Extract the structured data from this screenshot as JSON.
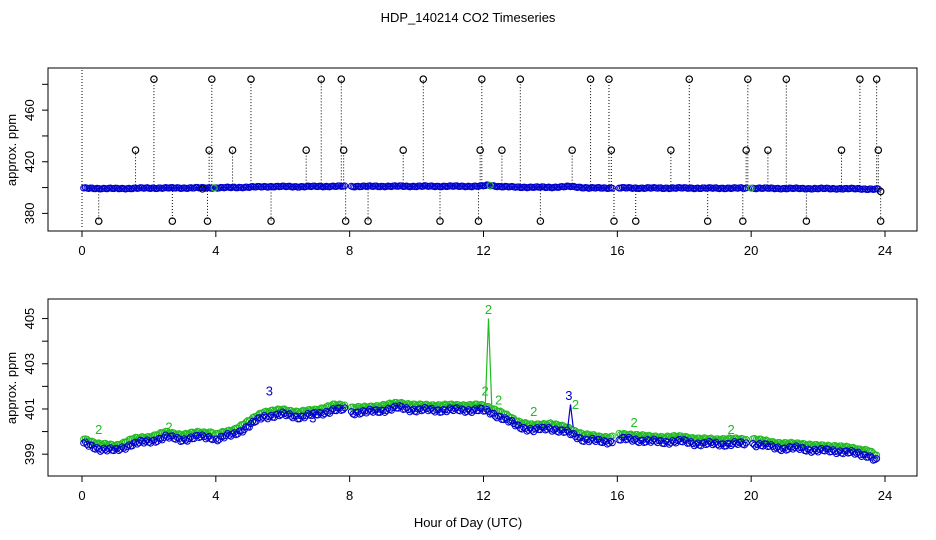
{
  "title": "HDP_140214  CO2 Timeseries",
  "xlabel": "Hour of Day (UTC)",
  "colors": {
    "outlier": "#000000",
    "series_blue": "#0000cc",
    "series_green": "#22bb22",
    "text": "#000000"
  },
  "chart_data": [
    {
      "type": "scatter",
      "ylabel": "approx. ppm",
      "xlim": [
        0,
        24
      ],
      "ylim": [
        371,
        488
      ],
      "xticks": [
        0,
        4,
        8,
        12,
        16,
        20,
        24
      ],
      "yticks": [
        380,
        420,
        460
      ],
      "ytick_labels": [
        "380",
        "420",
        "460"
      ],
      "grid": false,
      "baseline": [
        [
          0.05,
          399.5
        ],
        [
          1,
          399.2
        ],
        [
          2,
          399.6
        ],
        [
          3,
          399.7
        ],
        [
          4,
          399.8
        ],
        [
          5,
          400.3
        ],
        [
          5.6,
          400.8
        ],
        [
          6.5,
          400.7
        ],
        [
          7.5,
          401.0
        ],
        [
          8,
          400.9
        ],
        [
          9,
          401.0
        ],
        [
          10,
          401.0
        ],
        [
          11,
          401.0
        ],
        [
          11.9,
          401.0
        ],
        [
          12.15,
          401.8
        ],
        [
          12.5,
          400.8
        ],
        [
          13,
          400.3
        ],
        [
          14,
          400.2
        ],
        [
          14.6,
          400.8
        ],
        [
          15.2,
          399.6
        ],
        [
          16,
          399.7
        ],
        [
          17,
          399.6
        ],
        [
          18,
          399.6
        ],
        [
          19,
          399.5
        ],
        [
          20,
          399.5
        ],
        [
          21,
          399.3
        ],
        [
          22,
          399.2
        ],
        [
          23,
          399.1
        ],
        [
          23.8,
          398.7
        ]
      ],
      "spikes": [
        {
          "x": 0.5,
          "y": 374
        },
        {
          "x": 1.6,
          "y": 429
        },
        {
          "x": 2.15,
          "y": 484
        },
        {
          "x": 2.7,
          "y": 374
        },
        {
          "x": 3.6,
          "y": 399
        },
        {
          "x": 3.75,
          "y": 374
        },
        {
          "x": 3.8,
          "y": 429
        },
        {
          "x": 3.88,
          "y": 484
        },
        {
          "x": 4.5,
          "y": 429
        },
        {
          "x": 5.05,
          "y": 484
        },
        {
          "x": 5.65,
          "y": 374
        },
        {
          "x": 6.7,
          "y": 429
        },
        {
          "x": 7.15,
          "y": 484
        },
        {
          "x": 7.75,
          "y": 484
        },
        {
          "x": 7.82,
          "y": 429
        },
        {
          "x": 7.88,
          "y": 374
        },
        {
          "x": 8.55,
          "y": 374
        },
        {
          "x": 9.6,
          "y": 429
        },
        {
          "x": 10.2,
          "y": 484
        },
        {
          "x": 10.7,
          "y": 374
        },
        {
          "x": 11.85,
          "y": 374
        },
        {
          "x": 11.9,
          "y": 429
        },
        {
          "x": 11.95,
          "y": 484
        },
        {
          "x": 12.55,
          "y": 429
        },
        {
          "x": 13.1,
          "y": 484
        },
        {
          "x": 13.7,
          "y": 374
        },
        {
          "x": 14.65,
          "y": 429
        },
        {
          "x": 15.2,
          "y": 484
        },
        {
          "x": 15.75,
          "y": 484
        },
        {
          "x": 15.82,
          "y": 429
        },
        {
          "x": 15.9,
          "y": 374
        },
        {
          "x": 16.55,
          "y": 374
        },
        {
          "x": 17.6,
          "y": 429
        },
        {
          "x": 18.15,
          "y": 484
        },
        {
          "x": 18.7,
          "y": 374
        },
        {
          "x": 19.75,
          "y": 374
        },
        {
          "x": 19.85,
          "y": 429
        },
        {
          "x": 19.9,
          "y": 484
        },
        {
          "x": 20.5,
          "y": 429
        },
        {
          "x": 21.05,
          "y": 484
        },
        {
          "x": 21.65,
          "y": 374
        },
        {
          "x": 22.7,
          "y": 429
        },
        {
          "x": 23.25,
          "y": 484
        },
        {
          "x": 23.75,
          "y": 484
        },
        {
          "x": 23.8,
          "y": 429
        },
        {
          "x": 23.87,
          "y": 374
        }
      ]
    },
    {
      "type": "scatter",
      "ylabel": "approx. ppm",
      "xlim": [
        0,
        24
      ],
      "ylim": [
        398.3,
        405.6
      ],
      "xticks": [
        0,
        4,
        8,
        12,
        16,
        20,
        24
      ],
      "yticks": [
        399,
        401,
        403,
        405
      ],
      "ytick_labels": [
        "399",
        "401",
        "403",
        "405"
      ],
      "grid": false,
      "baseline": [
        [
          0.05,
          399.5
        ],
        [
          0.5,
          399.3
        ],
        [
          1,
          399.2
        ],
        [
          1.5,
          399.5
        ],
        [
          2,
          399.6
        ],
        [
          2.5,
          399.8
        ],
        [
          3,
          399.7
        ],
        [
          3.5,
          399.8
        ],
        [
          3.9,
          399.8
        ],
        [
          4.0,
          399.7
        ],
        [
          4.5,
          399.9
        ],
        [
          5,
          400.3
        ],
        [
          5.4,
          400.7
        ],
        [
          6,
          400.8
        ],
        [
          6.5,
          400.7
        ],
        [
          7,
          400.8
        ],
        [
          7.5,
          401.0
        ],
        [
          7.85,
          401.0
        ],
        [
          8.05,
          400.9
        ],
        [
          8.5,
          400.9
        ],
        [
          9,
          401.0
        ],
        [
          9.5,
          401.1
        ],
        [
          10,
          401.0
        ],
        [
          10.5,
          401.0
        ],
        [
          11,
          401.0
        ],
        [
          11.5,
          401.0
        ],
        [
          11.9,
          401.0
        ],
        [
          12.2,
          400.9
        ],
        [
          12.5,
          400.7
        ],
        [
          13,
          400.3
        ],
        [
          13.5,
          400.1
        ],
        [
          14,
          400.2
        ],
        [
          14.5,
          400.0
        ],
        [
          15,
          399.7
        ],
        [
          15.5,
          399.6
        ],
        [
          15.85,
          399.6
        ],
        [
          16.05,
          399.7
        ],
        [
          16.5,
          399.7
        ],
        [
          17,
          399.6
        ],
        [
          17.5,
          399.6
        ],
        [
          18,
          399.6
        ],
        [
          18.5,
          399.5
        ],
        [
          19,
          399.5
        ],
        [
          19.5,
          399.5
        ],
        [
          19.85,
          399.5
        ],
        [
          20.05,
          399.5
        ],
        [
          20.5,
          399.4
        ],
        [
          21,
          399.3
        ],
        [
          21.5,
          399.3
        ],
        [
          22,
          399.2
        ],
        [
          22.5,
          399.2
        ],
        [
          23,
          399.1
        ],
        [
          23.5,
          399.0
        ],
        [
          23.8,
          398.7
        ]
      ],
      "labels": [
        {
          "x": 0.5,
          "y": 399.9,
          "text": "2",
          "series": "green"
        },
        {
          "x": 2.6,
          "y": 400.0,
          "text": "2",
          "series": "green"
        },
        {
          "x": 5.6,
          "y": 401.6,
          "text": "3",
          "series": "blue"
        },
        {
          "x": 6.9,
          "y": 400.4,
          "text": "3",
          "series": "blue"
        },
        {
          "x": 12.15,
          "y": 405.2,
          "text": "2",
          "series": "green"
        },
        {
          "x": 12.05,
          "y": 401.6,
          "text": "2",
          "series": "green"
        },
        {
          "x": 12.45,
          "y": 401.2,
          "text": "2",
          "series": "green"
        },
        {
          "x": 14.55,
          "y": 401.4,
          "text": "3",
          "series": "blue"
        },
        {
          "x": 14.75,
          "y": 401.0,
          "text": "2",
          "series": "green"
        },
        {
          "x": 13.5,
          "y": 400.7,
          "text": "2",
          "series": "green"
        },
        {
          "x": 16.5,
          "y": 400.2,
          "text": "2",
          "series": "green"
        },
        {
          "x": 19.4,
          "y": 399.9,
          "text": "2",
          "series": "green"
        }
      ]
    }
  ]
}
